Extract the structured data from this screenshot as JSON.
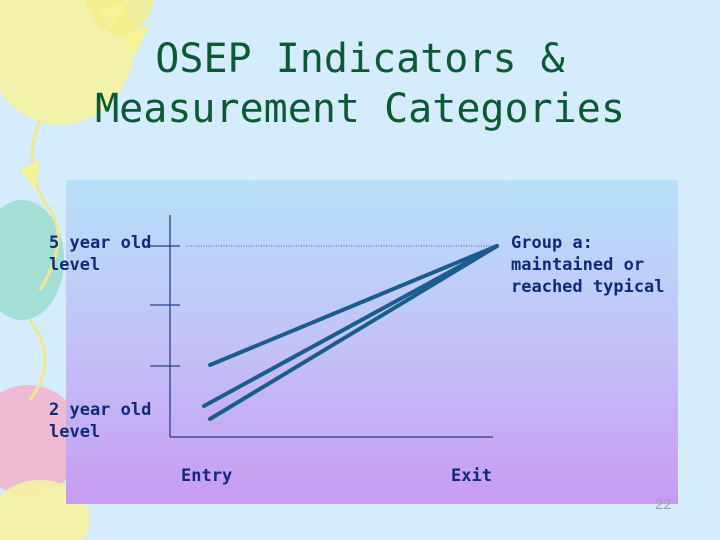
{
  "slide": {
    "title_lines": [
      "OSEP Indicators &",
      "Measurement Categories"
    ],
    "page_number": "22"
  },
  "diagram": {
    "y_labels": {
      "top": [
        "5 year old",
        "level"
      ],
      "bottom": [
        "2 year old",
        "level"
      ]
    },
    "x_labels": {
      "start": "Entry",
      "end": "Exit"
    },
    "annotation": [
      "Group a:",
      "maintained or",
      "reached typical"
    ]
  },
  "colors": {
    "title": "#0c5a35",
    "label": "#0e2a78",
    "line": "#1a5c8c",
    "axis": "#2a3f86",
    "background": "#d4ecfb"
  }
}
